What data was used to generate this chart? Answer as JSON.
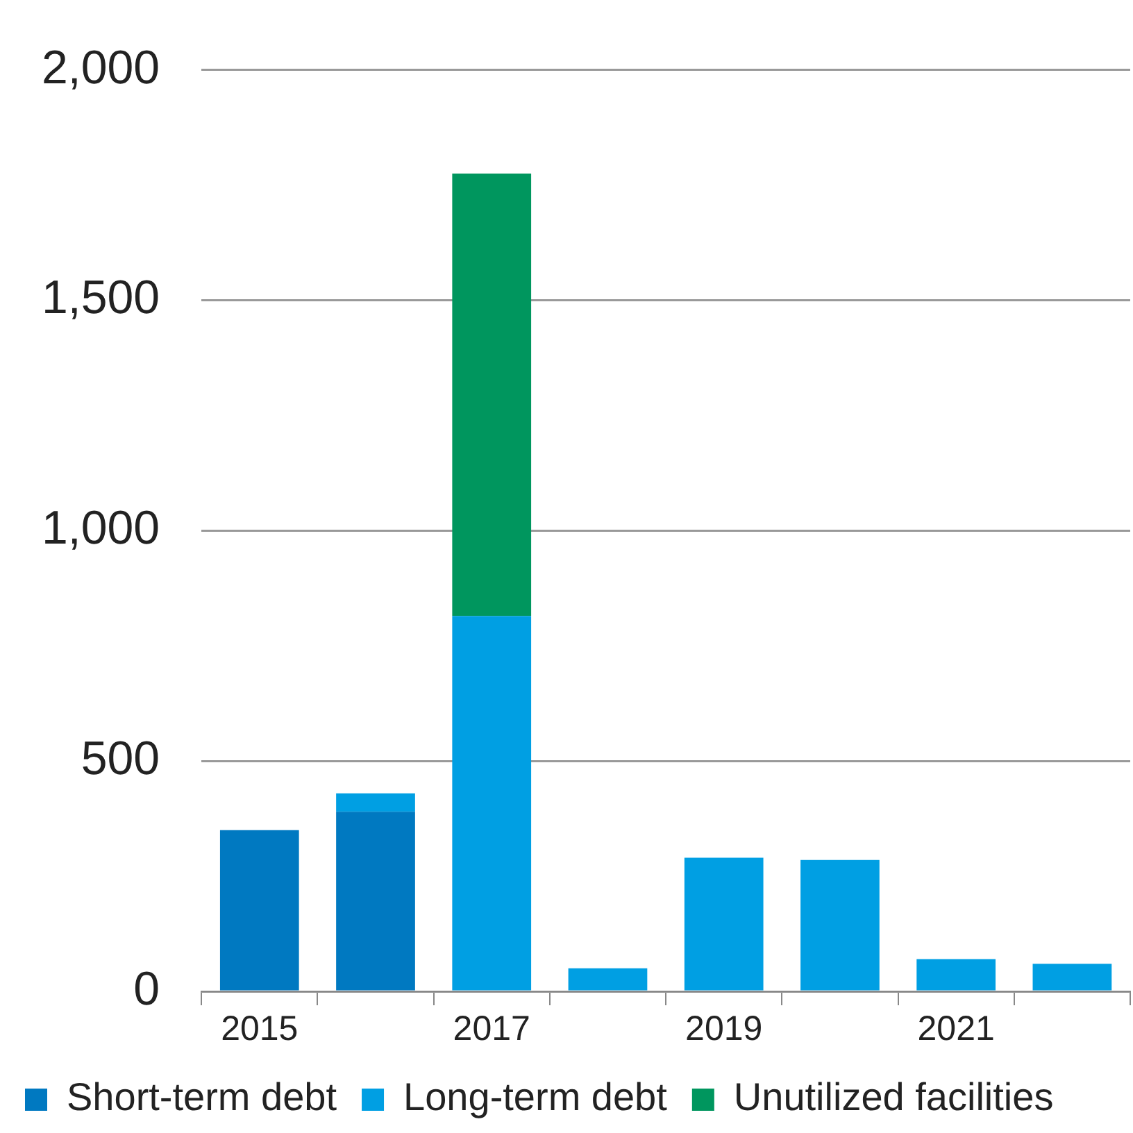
{
  "chart_data": {
    "type": "bar",
    "stacked": true,
    "categories": [
      "2015",
      null,
      "2017",
      null,
      "2019",
      null,
      "2021",
      null
    ],
    "series": [
      {
        "name": "Short-term debt",
        "color": "#0079c1",
        "values": [
          350,
          390,
          null,
          null,
          null,
          null,
          null,
          null
        ]
      },
      {
        "name": "Long-term debt",
        "color": "#009fe3",
        "values": [
          null,
          40,
          815,
          50,
          290,
          285,
          70,
          60
        ]
      },
      {
        "name": "Unutilized facilities",
        "color": "#00965e",
        "values": [
          null,
          null,
          960,
          null,
          null,
          null,
          null,
          null
        ]
      }
    ],
    "ylim": [
      0,
      2000
    ],
    "yticks": [
      0,
      {
        "value": 500,
        "label": "500"
      },
      {
        "value": 1000,
        "label": "1,000"
      },
      {
        "value": 1500,
        "label": "1,500"
      },
      {
        "value": 2000,
        "label": "2,000"
      }
    ],
    "grid": "y",
    "legend": "bottom"
  }
}
